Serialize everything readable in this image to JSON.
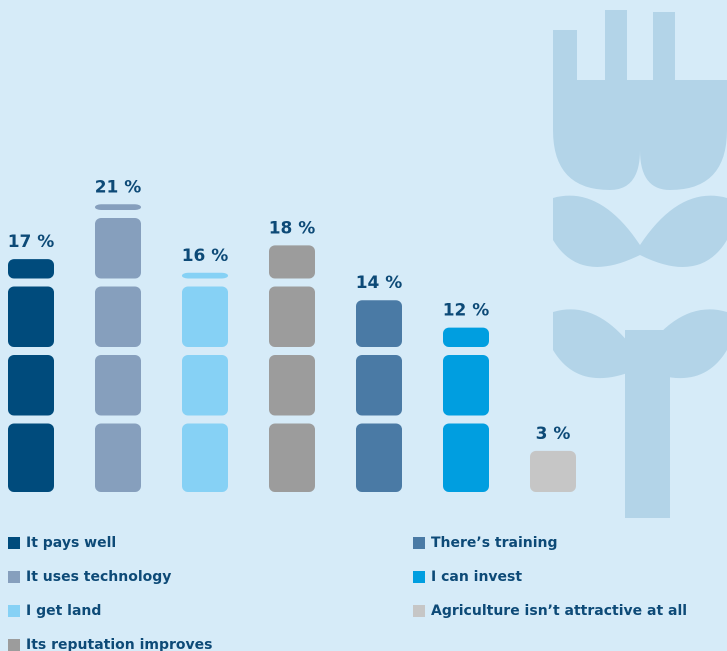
{
  "chart_data": {
    "type": "bar",
    "categories": [
      "It pays well",
      "It uses technology",
      "I get land",
      "Its reputation improves",
      "There’s training",
      "I can invest",
      "Agriculture isn’t attractive at all"
    ],
    "values": [
      17,
      21,
      16,
      18,
      14,
      12,
      3
    ],
    "value_labels": [
      "17 %",
      "21 %",
      "16 %",
      "18 %",
      "14 %",
      "12 %",
      "3 %"
    ],
    "colors": [
      "#004b7c",
      "#869fbd",
      "#86d1f5",
      "#9c9c9c",
      "#4a7aa5",
      "#009ee0",
      "#c6c6c6"
    ]
  }
}
